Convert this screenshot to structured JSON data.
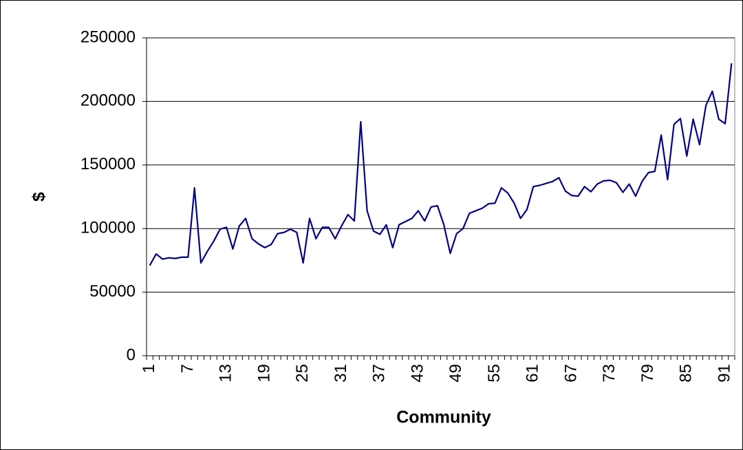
{
  "chart_data": {
    "type": "line",
    "x_label": "Community",
    "y_label": "$",
    "categories": [
      "1",
      null,
      null,
      null,
      null,
      null,
      "7",
      null,
      null,
      null,
      null,
      null,
      "13",
      null,
      null,
      null,
      null,
      null,
      "19",
      null,
      null,
      null,
      null,
      null,
      "25",
      null,
      null,
      null,
      null,
      null,
      "31",
      null,
      null,
      null,
      null,
      null,
      "37",
      null,
      null,
      null,
      null,
      null,
      "43",
      null,
      null,
      null,
      null,
      null,
      "49",
      null,
      null,
      null,
      null,
      null,
      "55",
      null,
      null,
      null,
      null,
      null,
      "61",
      null,
      null,
      null,
      null,
      null,
      "67",
      null,
      null,
      null,
      null,
      null,
      "73",
      null,
      null,
      null,
      null,
      null,
      "79",
      null,
      null,
      null,
      null,
      null,
      "85",
      null,
      null,
      null,
      null,
      null,
      "91",
      null
    ],
    "series": [
      {
        "color": "#000080",
        "values": [
          71000,
          80000,
          76000,
          77000,
          76500,
          77500,
          77500,
          132000,
          73000,
          82000,
          90000,
          99500,
          101000,
          84000,
          102000,
          108000,
          92000,
          88000,
          85000,
          87500,
          96000,
          97000,
          99500,
          97000,
          73000,
          108000,
          92000,
          101000,
          101000,
          92000,
          102000,
          111000,
          106000,
          184000,
          114000,
          98000,
          95500,
          103000,
          85000,
          103000,
          105500,
          108000,
          114000,
          106000,
          117000,
          118000,
          103000,
          80500,
          96000,
          100000,
          112000,
          114000,
          116000,
          119500,
          120000,
          132000,
          128000,
          120000,
          108000,
          115000,
          133000,
          134000,
          135500,
          137000,
          140000,
          129500,
          126000,
          125500,
          133000,
          129000,
          135000,
          137500,
          138000,
          136000,
          128500,
          135000,
          125500,
          137000,
          144000,
          145000,
          173500,
          138500,
          182000,
          186500,
          157000,
          186000,
          166000,
          197000,
          208000,
          186000,
          182500,
          230000
        ]
      }
    ],
    "ylim": [
      0,
      250000
    ],
    "yticks": [
      0,
      50000,
      100000,
      150000,
      200000,
      250000
    ],
    "grid": true
  }
}
